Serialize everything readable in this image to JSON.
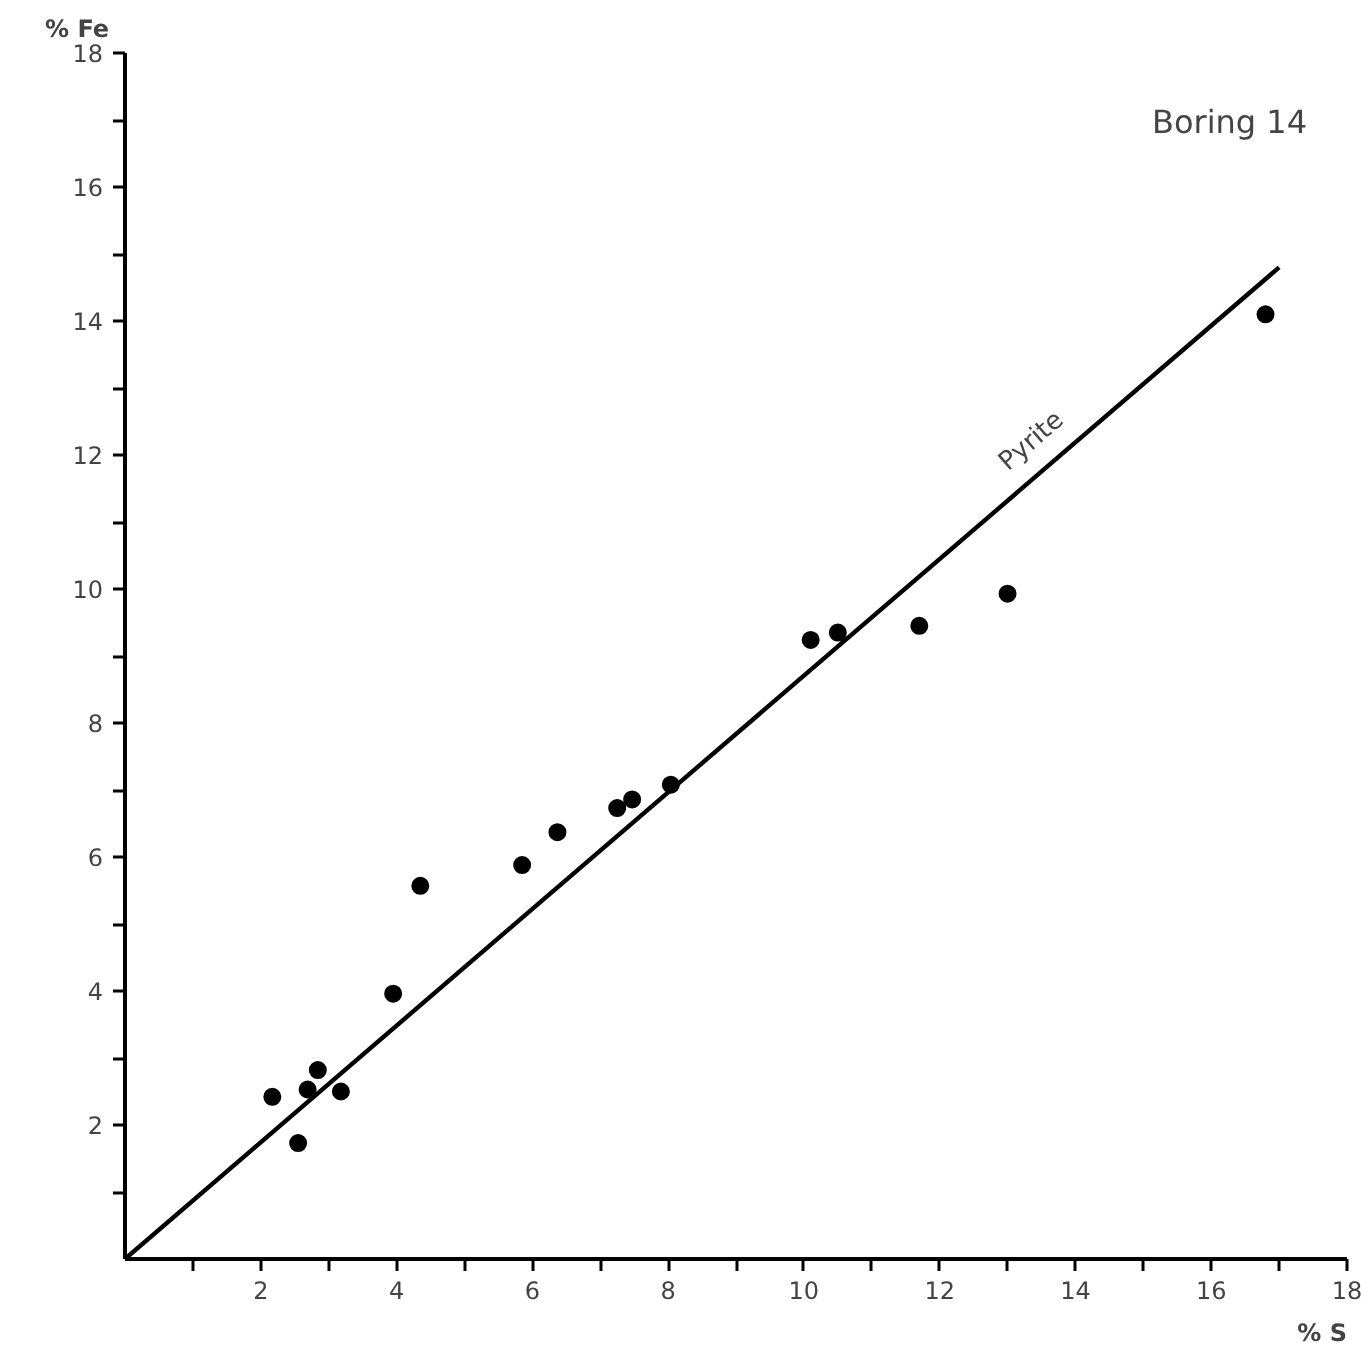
{
  "chart_data": {
    "type": "scatter",
    "title": "Boring 14",
    "xlabel": "% S",
    "ylabel": "% Fe",
    "xlim": [
      0,
      18
    ],
    "ylim": [
      0,
      18
    ],
    "xticks": [
      {
        "value": 1,
        "label": null
      },
      2,
      {
        "value": 3,
        "label": null
      },
      4,
      {
        "value": 5,
        "label": null
      },
      6,
      {
        "value": 7,
        "label": null
      },
      8,
      {
        "value": 9,
        "label": null
      },
      10,
      {
        "value": 11,
        "label": null
      },
      12,
      {
        "value": 13,
        "label": null
      },
      14,
      {
        "value": 15,
        "label": null
      },
      16,
      {
        "value": 17,
        "label": null
      },
      18
    ],
    "yticks": [
      {
        "value": 1,
        "label": null
      },
      2,
      {
        "value": 3,
        "label": null
      },
      4,
      {
        "value": 5,
        "label": null
      },
      6,
      {
        "value": 7,
        "label": null
      },
      8,
      {
        "value": 9,
        "label": null
      },
      10,
      {
        "value": 11,
        "label": null
      },
      12,
      {
        "value": 13,
        "label": null
      },
      14,
      {
        "value": 15,
        "label": null
      },
      16,
      {
        "value": 17,
        "label": null
      },
      18
    ],
    "grid": false,
    "marker": "circle",
    "series": [
      {
        "color": "#000000",
        "x": [
          2.17,
          2.55,
          2.69,
          2.84,
          3.18,
          3.95,
          4.35,
          5.85,
          6.37,
          7.25,
          7.47,
          8.04,
          10.1,
          10.5,
          11.7,
          13.0,
          16.8
        ],
        "values": [
          2.42,
          1.73,
          2.53,
          2.82,
          2.5,
          3.96,
          5.57,
          5.88,
          6.37,
          6.73,
          6.86,
          7.08,
          9.24,
          9.35,
          9.45,
          9.93,
          14.1
        ]
      },
      {
        "type": "line",
        "name": "Pyrite",
        "color": "#000000",
        "line_style": "solid",
        "marker": "none",
        "x": [
          0,
          17
        ],
        "values": [
          0,
          14.8
        ]
      }
    ]
  }
}
